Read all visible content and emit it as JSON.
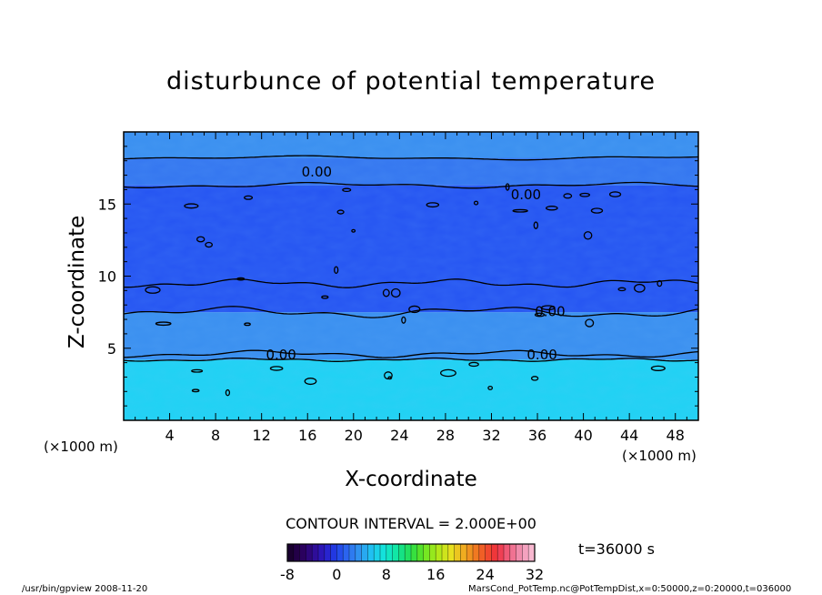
{
  "chart_data": {
    "type": "heatmap",
    "title": "disturbunce of potential temperature",
    "xlabel": "X-coordinate",
    "ylabel": "Z-coordinate",
    "x_unit": "(×1000 m)",
    "y_unit": "(×1000 m)",
    "xlim": [
      0,
      50
    ],
    "ylim": [
      0,
      20
    ],
    "x_ticks": [
      4,
      8,
      12,
      16,
      20,
      24,
      28,
      32,
      36,
      40,
      44,
      48
    ],
    "y_ticks": [
      5,
      10,
      15
    ],
    "contour_interval": "CONTOUR INTERVAL = 2.000E+00",
    "contour_labels": [
      {
        "text": "0.00",
        "x": 16.8,
        "z": 17.3
      },
      {
        "text": "0.00",
        "x": 35.0,
        "z": 15.7
      },
      {
        "text": "0.00",
        "x": 37.1,
        "z": 7.6
      },
      {
        "text": "0.00",
        "x": 13.7,
        "z": 4.6
      },
      {
        "text": "0.00",
        "x": 36.4,
        "z": 4.6
      }
    ],
    "layers": [
      {
        "z_from": 0,
        "z_to": 4.2,
        "value": 4,
        "color": "#1fd2f4"
      },
      {
        "z_from": 4.2,
        "z_to": 7.5,
        "value": 2,
        "color": "#3a8ff0"
      },
      {
        "z_from": 7.5,
        "z_to": 16.3,
        "value": -2,
        "color": "#2554f2"
      },
      {
        "z_from": 16.3,
        "z_to": 18.2,
        "value": 0,
        "color": "#3476f0"
      },
      {
        "z_from": 18.2,
        "z_to": 20,
        "value": 2,
        "color": "#3a8ff0"
      }
    ],
    "colorbar": {
      "min": -8,
      "max": 32,
      "ticks": [
        -8,
        0,
        8,
        16,
        24,
        32
      ],
      "colors": [
        "#1a0030",
        "#2a005a",
        "#2f0a90",
        "#2a1cc8",
        "#2040e8",
        "#2d6af0",
        "#2f95f0",
        "#20c0f2",
        "#14e0e0",
        "#10e8b0",
        "#18e070",
        "#40e030",
        "#80e820",
        "#b8e818",
        "#e8e020",
        "#f0b020",
        "#f08020",
        "#f05028",
        "#f03040",
        "#f06080",
        "#f090b0",
        "#f8b8d0"
      ]
    },
    "time": "t=36000 s"
  },
  "footer": {
    "left": "/usr/bin/gpview   2008-11-20",
    "right": "MarsCond_PotTemp.nc@PotTempDist,x=0:50000,z=0:20000,t=036000"
  }
}
